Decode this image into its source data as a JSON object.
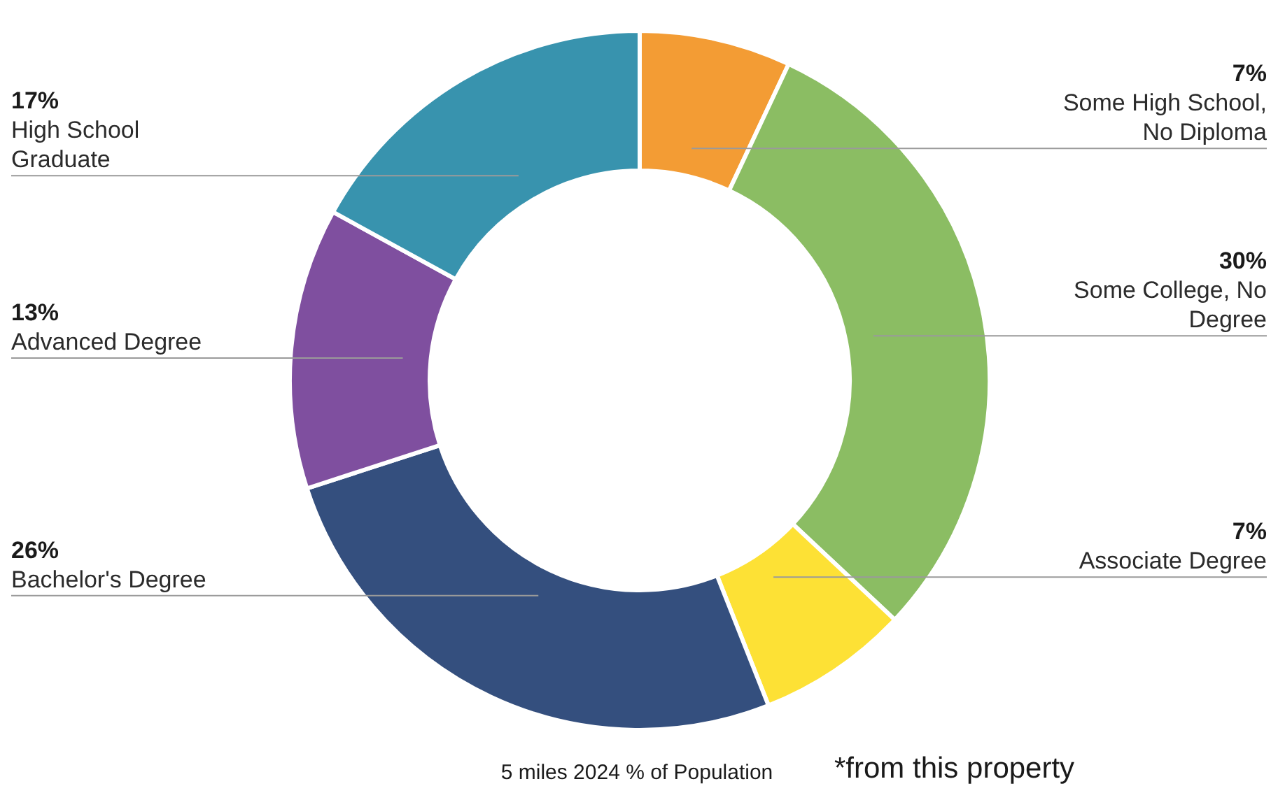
{
  "chart_data": {
    "type": "donut",
    "categories": [
      "Some High School, No Diploma",
      "Some College, No Degree",
      "Associate Degree",
      "Bachelor's Degree",
      "Advanced Degree",
      "High School Graduate"
    ],
    "values": [
      7,
      30,
      7,
      26,
      13,
      17
    ],
    "value_labels": [
      "7%",
      "30%",
      "7%",
      "26%",
      "13%",
      "17%"
    ],
    "colors": [
      "#f39c34",
      "#8bbd63",
      "#fde135",
      "#344f7e",
      "#7f4f9f",
      "#3893ae"
    ],
    "annotations": [
      "5 miles 2024 % of Population",
      "*from this property"
    ]
  }
}
